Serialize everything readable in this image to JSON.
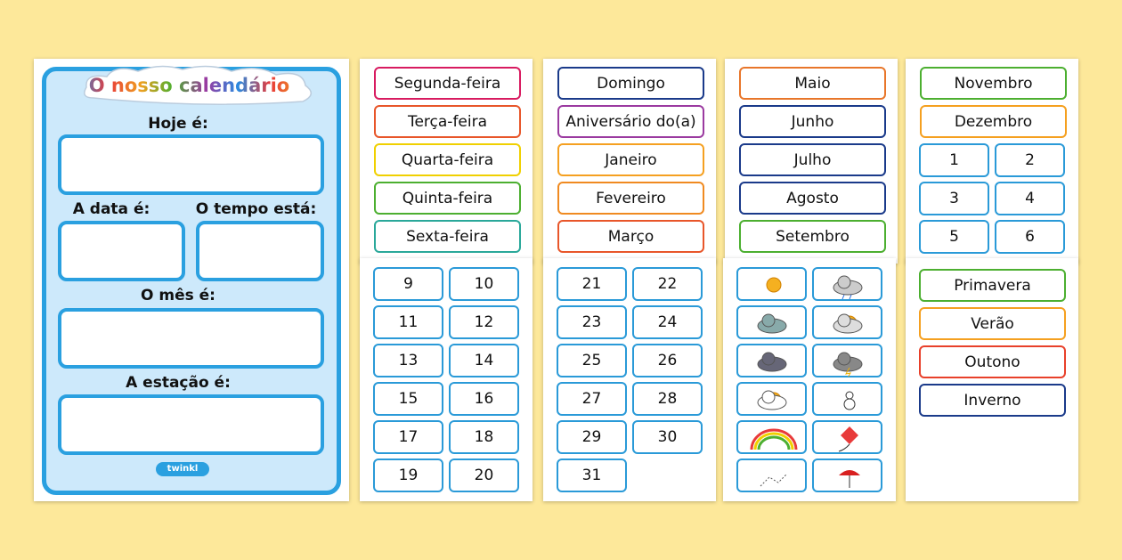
{
  "poster": {
    "title": "O nosso calendário",
    "labels": [
      "Hoje é:",
      "A data é:",
      "O tempo está:",
      "O mês é:",
      "A estação é:"
    ],
    "logo": "twinkl"
  },
  "number_color": "#2a9ad8",
  "top_sheets": [
    {
      "cards": [
        {
          "label": "Segunda-feira",
          "color": "#d81b60"
        },
        {
          "label": "Terça-feira",
          "color": "#e8562a"
        },
        {
          "label": "Quarta-feira",
          "color": "#f0d000"
        },
        {
          "label": "Quinta-feira",
          "color": "#4caf30"
        },
        {
          "label": "Sexta-feira",
          "color": "#2aa89a"
        }
      ]
    },
    {
      "cards": [
        {
          "label": "Domingo",
          "color": "#1a3a8a"
        },
        {
          "label": "Aniversário do(a)",
          "color": "#9b3aa0"
        },
        {
          "label": "Janeiro",
          "color": "#f5a020"
        },
        {
          "label": "Fevereiro",
          "color": "#f08a20"
        },
        {
          "label": "Março",
          "color": "#e8562a"
        }
      ]
    },
    {
      "cards": [
        {
          "label": "Maio",
          "color": "#e8762a"
        },
        {
          "label": "Junho",
          "color": "#1a3a8a"
        },
        {
          "label": "Julho",
          "color": "#1a3a8a"
        },
        {
          "label": "Agosto",
          "color": "#1a3a8a"
        },
        {
          "label": "Setembro",
          "color": "#4caf30"
        }
      ]
    },
    {
      "cards": [
        {
          "label": "Novembro",
          "color": "#4caf30"
        },
        {
          "label": "Dezembro",
          "color": "#f5a020"
        }
      ],
      "numbers": [
        1,
        2,
        3,
        4,
        5,
        6
      ]
    }
  ],
  "bottom_sheets": [
    {
      "numbers": [
        9,
        10,
        11,
        12,
        13,
        14,
        15,
        16,
        17,
        18,
        19,
        20
      ]
    },
    {
      "numbers": [
        21,
        22,
        23,
        24,
        25,
        26,
        27,
        28,
        29,
        30,
        31
      ]
    },
    {
      "cards": [
        {
          "label": "Primavera",
          "color": "#4caf30"
        },
        {
          "label": "Verão",
          "color": "#f5a020"
        },
        {
          "label": "Outono",
          "color": "#e8402a"
        },
        {
          "label": "Inverno",
          "color": "#1a3a8a"
        }
      ]
    }
  ]
}
